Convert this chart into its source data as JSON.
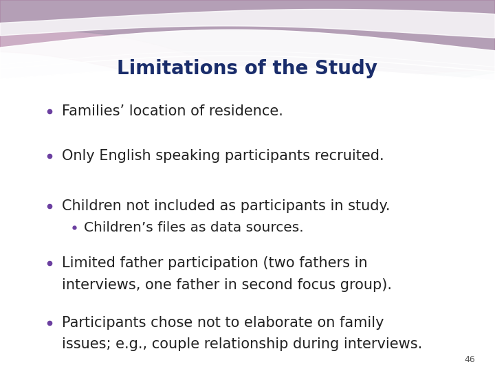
{
  "title": "Limitations of the Study",
  "title_color": "#1a2d6b",
  "title_fontsize": 20,
  "title_bold": true,
  "background_color": "#f0eef4",
  "bullet_color": "#6b3fa0",
  "text_color": "#222222",
  "bullet_fontsize": 15,
  "page_number": "46",
  "teal_color": "#8db5b5",
  "purple_color": "#b07aa0",
  "white_color": "#ffffff",
  "bullets": [
    {
      "text": "Families’ location of residence.",
      "sub": []
    },
    {
      "text": "Only English speaking participants recruited.",
      "sub": []
    },
    {
      "text": "Children not included as participants in study.",
      "sub": [
        "Children’s files as data sources."
      ]
    },
    {
      "text": "Limited father participation (two fathers in\ninterviews, one father in second focus group).",
      "sub": []
    },
    {
      "text": "Participants chose not to elaborate on family\nissues; e.g., couple relationship during interviews.",
      "sub": []
    }
  ]
}
